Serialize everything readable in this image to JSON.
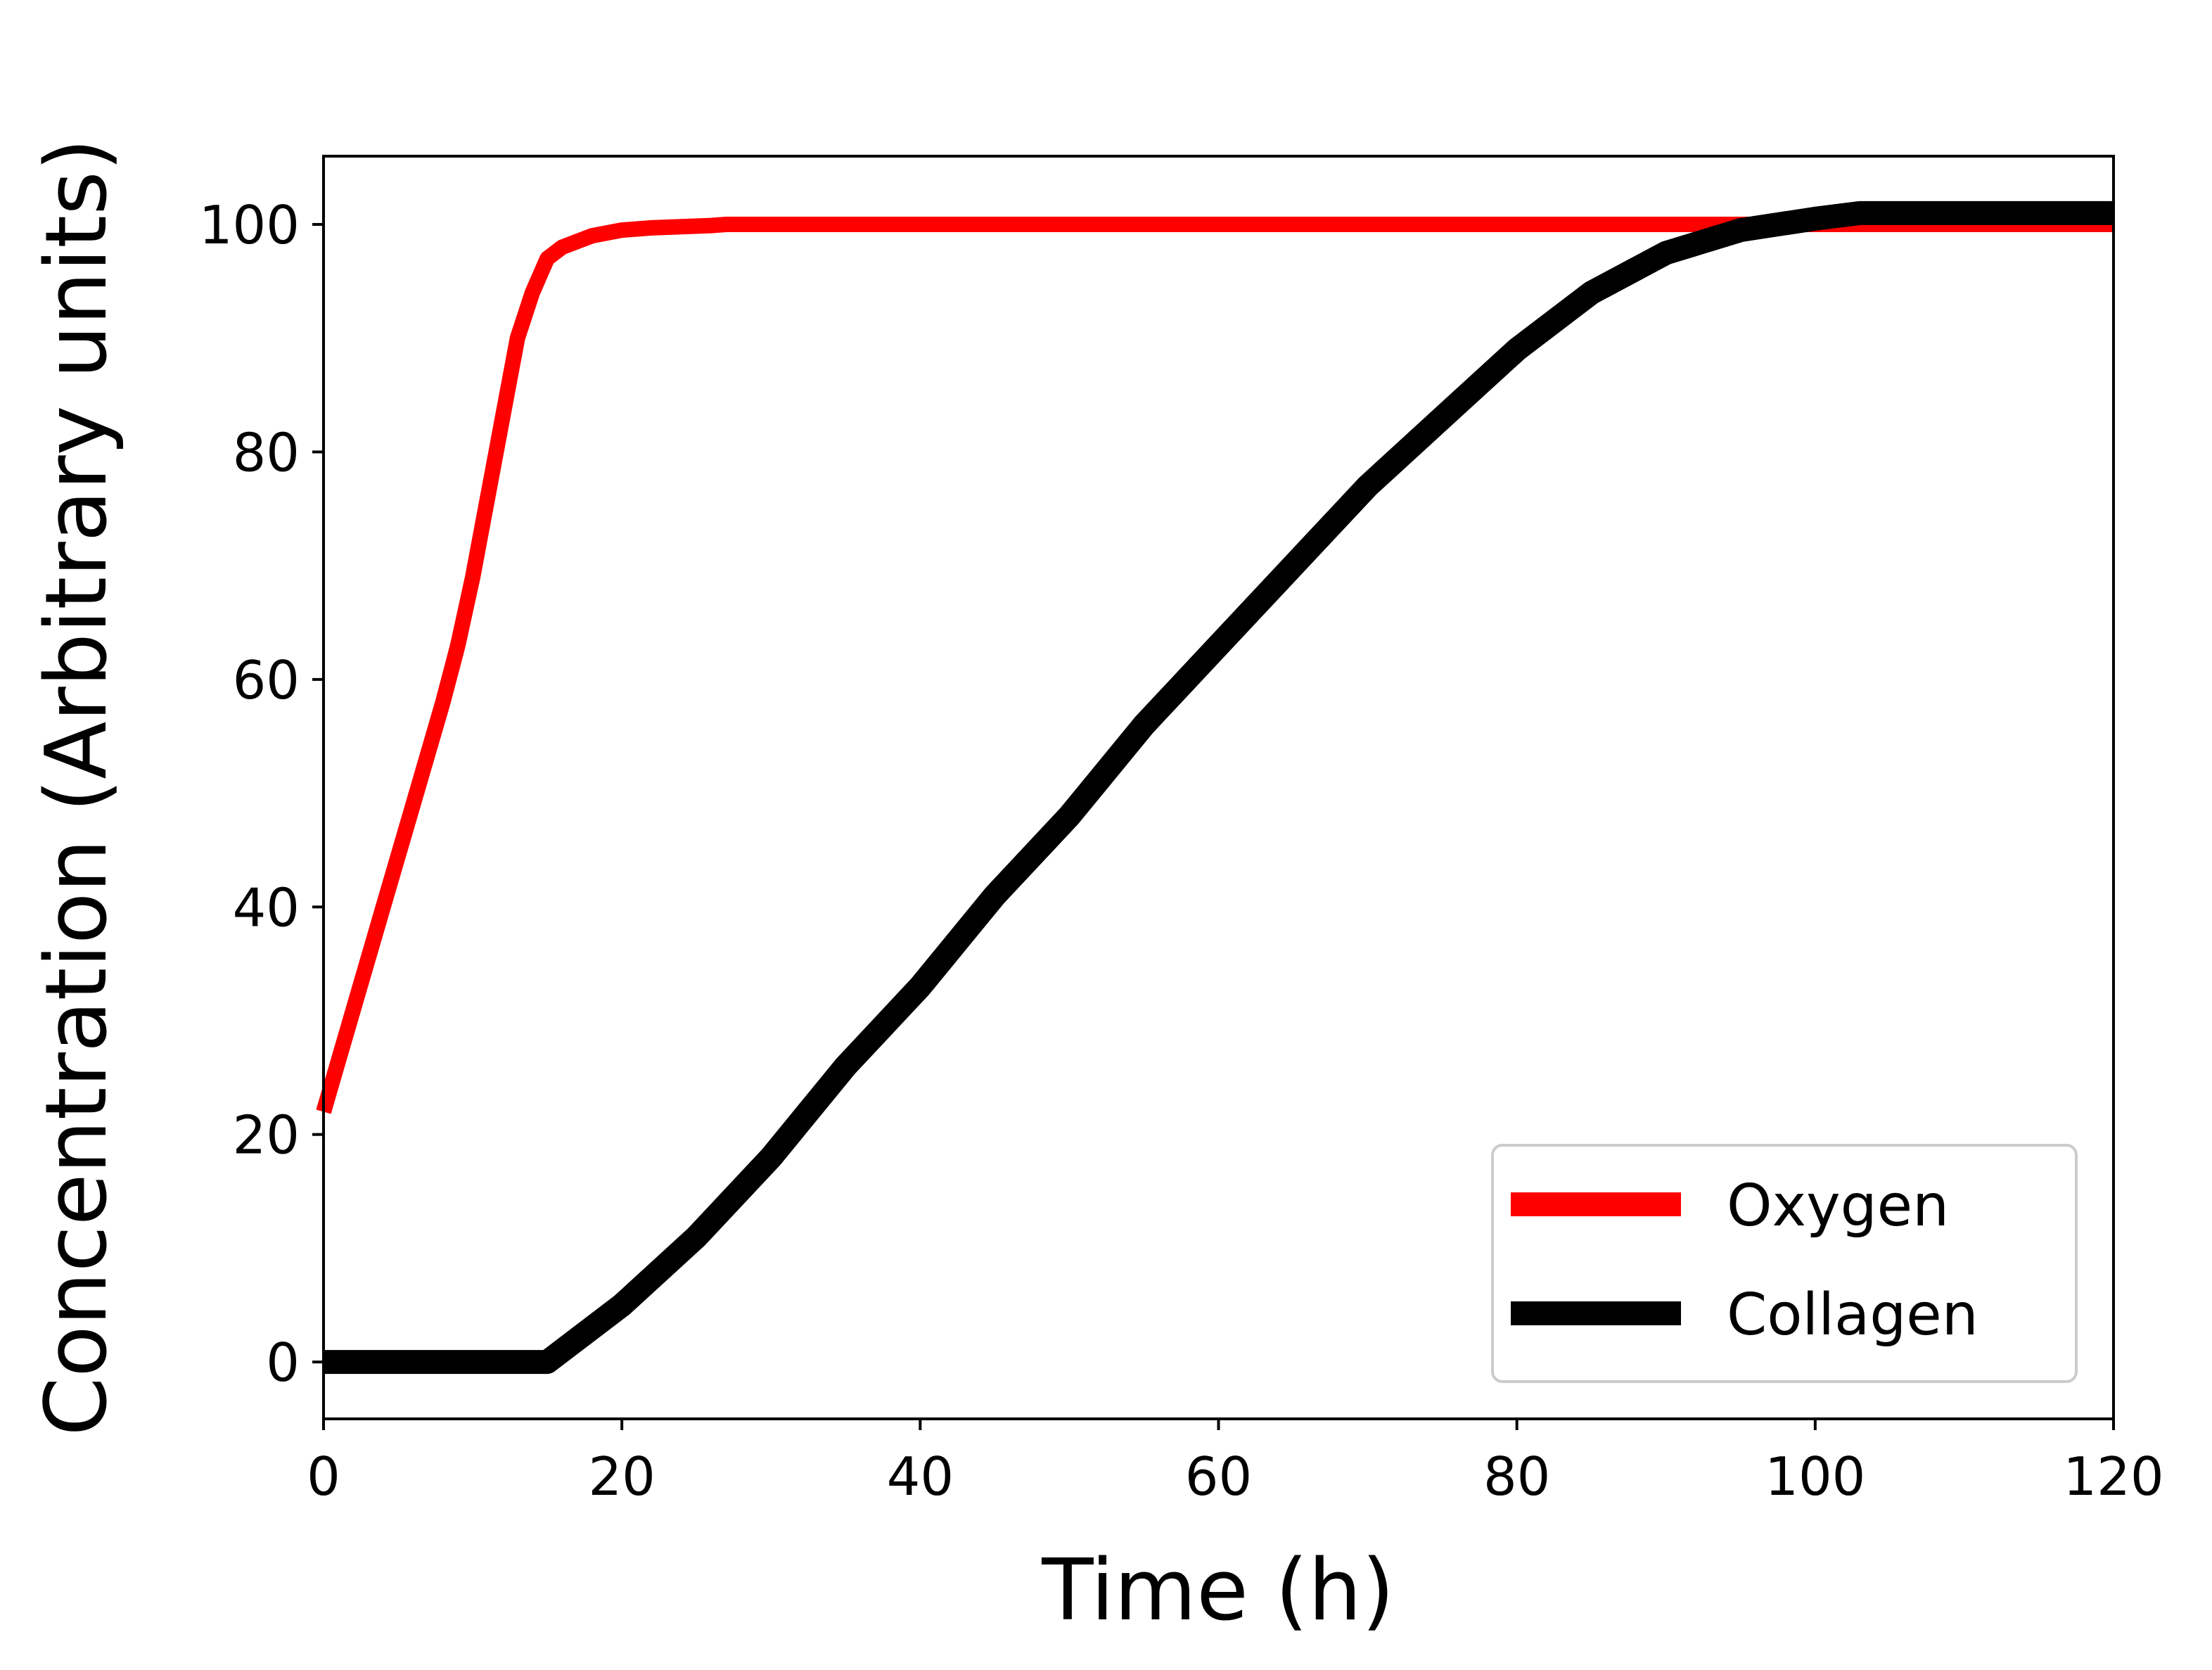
{
  "chart_data": {
    "type": "line",
    "title": "",
    "xlabel": "Time (h)",
    "ylabel": "Concentration (Arbitrary units)",
    "xlim": [
      0,
      120
    ],
    "ylim": [
      -5,
      106
    ],
    "xticks": [
      0,
      20,
      40,
      60,
      80,
      100,
      120
    ],
    "yticks": [
      0,
      20,
      40,
      60,
      80,
      100
    ],
    "xtick_labels": [
      "0",
      "20",
      "40",
      "60",
      "80",
      "100",
      "120"
    ],
    "ytick_labels": [
      "0",
      "20",
      "40",
      "60",
      "80",
      "100"
    ],
    "grid": false,
    "legend_position": "lower right",
    "series": [
      {
        "name": "Oxygen",
        "color": "#ff0000",
        "x": [
          0,
          2,
          4,
          6,
          8,
          9,
          10,
          11,
          12,
          13,
          14,
          15,
          16,
          18,
          20,
          22,
          24,
          26,
          27,
          28,
          30,
          40,
          120
        ],
        "y": [
          22,
          31,
          40,
          49,
          58,
          63,
          69,
          76,
          83,
          90,
          94,
          97,
          98,
          99,
          99.5,
          99.7,
          99.8,
          99.9,
          100,
          100,
          100,
          100,
          100
        ]
      },
      {
        "name": "Collagen",
        "color": "#000000",
        "x": [
          0,
          15,
          20,
          25,
          30,
          35,
          40,
          45,
          50,
          55,
          60,
          65,
          70,
          75,
          80,
          85,
          90,
          95,
          100,
          103,
          120
        ],
        "y": [
          0,
          0,
          5,
          11,
          18,
          26,
          33,
          41,
          48,
          56,
          63,
          70,
          77,
          83,
          89,
          94,
          97.5,
          99.5,
          100.5,
          101,
          101
        ]
      }
    ]
  }
}
